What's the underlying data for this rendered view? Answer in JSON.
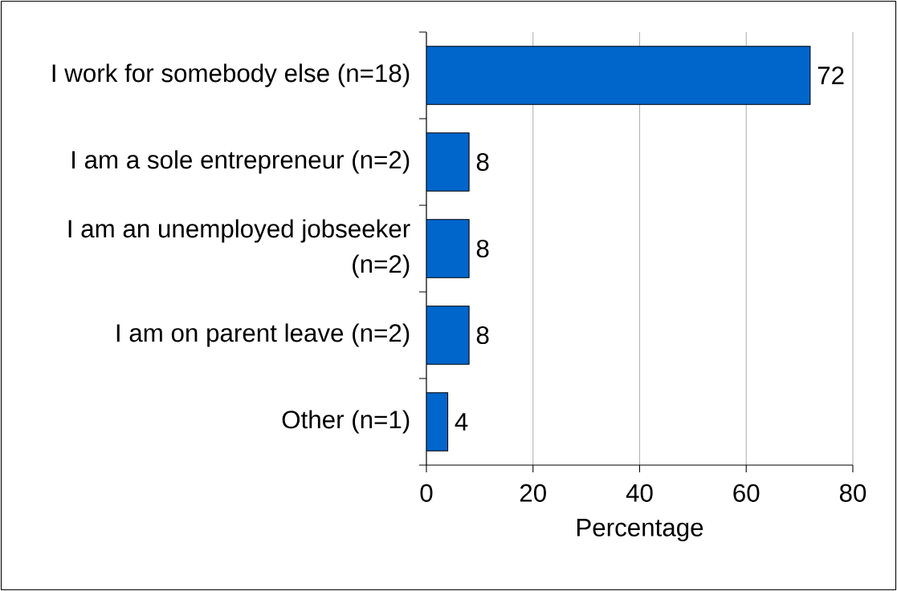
{
  "chart_data": {
    "type": "bar",
    "orientation": "horizontal",
    "xlabel": "Percentage",
    "categories": [
      "I work for somebody else (n=18)",
      "I am a sole entrepreneur (n=2)",
      "I am an unemployed jobseeker (n=2)",
      "I am on parent leave (n=2)",
      "Other (n=1)"
    ],
    "values": [
      72,
      8,
      8,
      8,
      4
    ],
    "color": "#0066cc",
    "data_labels": true,
    "xlim": [
      0,
      80
    ],
    "xticks": [
      0,
      20,
      40,
      60,
      80
    ],
    "grid": "x"
  }
}
